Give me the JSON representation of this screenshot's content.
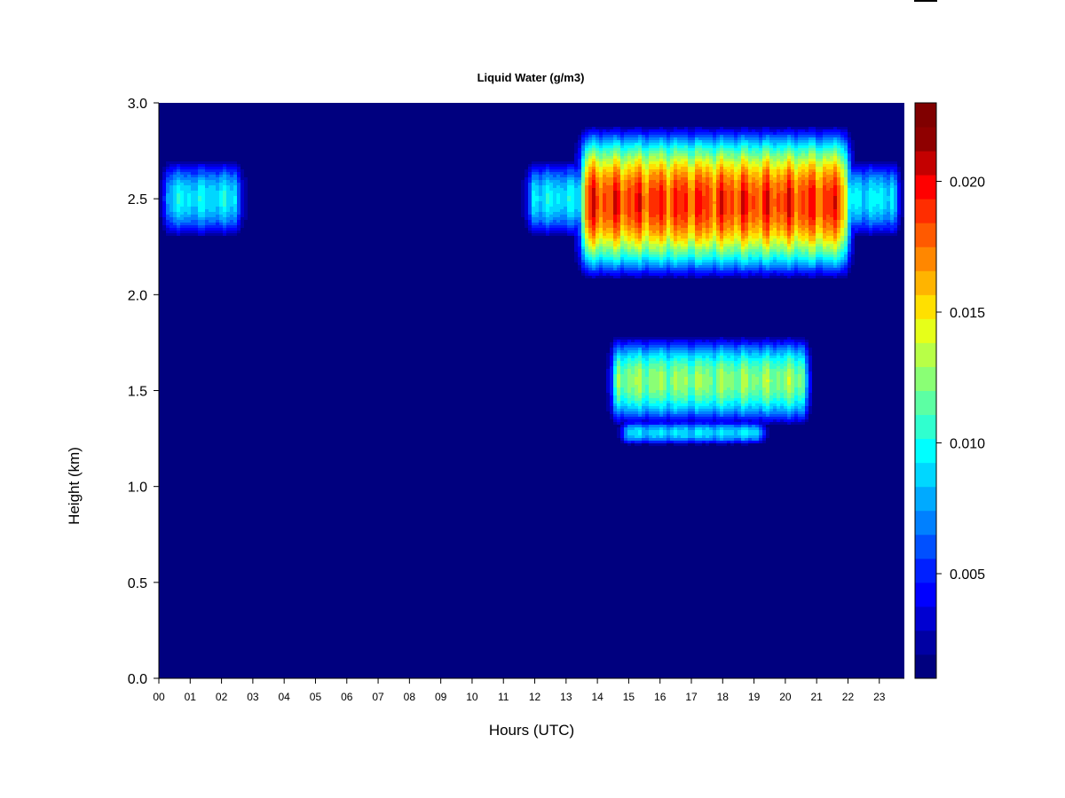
{
  "chart_data": {
    "type": "heatmap",
    "title": "Liquid Water (g/m3)",
    "xlabel": "Hours (UTC)",
    "ylabel": "Height (km)",
    "xlim": [
      0,
      23.8
    ],
    "ylim": [
      0,
      3.0
    ],
    "x_ticks": [
      "00",
      "01",
      "02",
      "03",
      "04",
      "05",
      "06",
      "07",
      "08",
      "09",
      "10",
      "11",
      "12",
      "13",
      "14",
      "15",
      "16",
      "17",
      "18",
      "19",
      "20",
      "21",
      "22",
      "23"
    ],
    "y_ticks": [
      "0.0",
      "0.5",
      "1.0",
      "1.5",
      "2.0",
      "2.5",
      "3.0"
    ],
    "colorbar": {
      "vmin": 0.001,
      "vmax": 0.023,
      "ticks": [
        0.005,
        0.01,
        0.015,
        0.02
      ],
      "tick_labels": [
        "0.005",
        "0.010",
        "0.015",
        "0.020"
      ],
      "colors": [
        "#00007f",
        "#0000a3",
        "#0000d1",
        "#0000ff",
        "#0020ff",
        "#0050ff",
        "#0080ff",
        "#00aaff",
        "#00d7ff",
        "#00ffff",
        "#30ffcf",
        "#5cffa3",
        "#8aff75",
        "#b8ff47",
        "#e6ff19",
        "#ffe000",
        "#ffb400",
        "#ff8700",
        "#ff5a00",
        "#ff2d00",
        "#ff0000",
        "#c40000",
        "#8f0000",
        "#800000"
      ]
    },
    "background_value": 0,
    "cloud_layers": [
      {
        "x_start": 0.0,
        "x_end": 2.8,
        "y_center": 2.5,
        "half_thickness": 0.22,
        "peak": 0.0105
      },
      {
        "x_start": 11.6,
        "x_end": 23.8,
        "y_center": 2.5,
        "half_thickness": 0.22,
        "peak": 0.0105
      },
      {
        "x_start": 13.3,
        "x_end": 22.2,
        "y_center": 2.48,
        "half_thickness": 0.42,
        "peak": 0.021
      },
      {
        "x_start": 14.3,
        "x_end": 20.9,
        "y_center": 1.55,
        "half_thickness": 0.25,
        "peak": 0.014
      },
      {
        "x_start": 14.6,
        "x_end": 19.5,
        "y_center": 1.28,
        "half_thickness": 0.07,
        "peak": 0.01
      }
    ]
  },
  "colors": {
    "background": "#00007f",
    "axis": "#000000"
  }
}
